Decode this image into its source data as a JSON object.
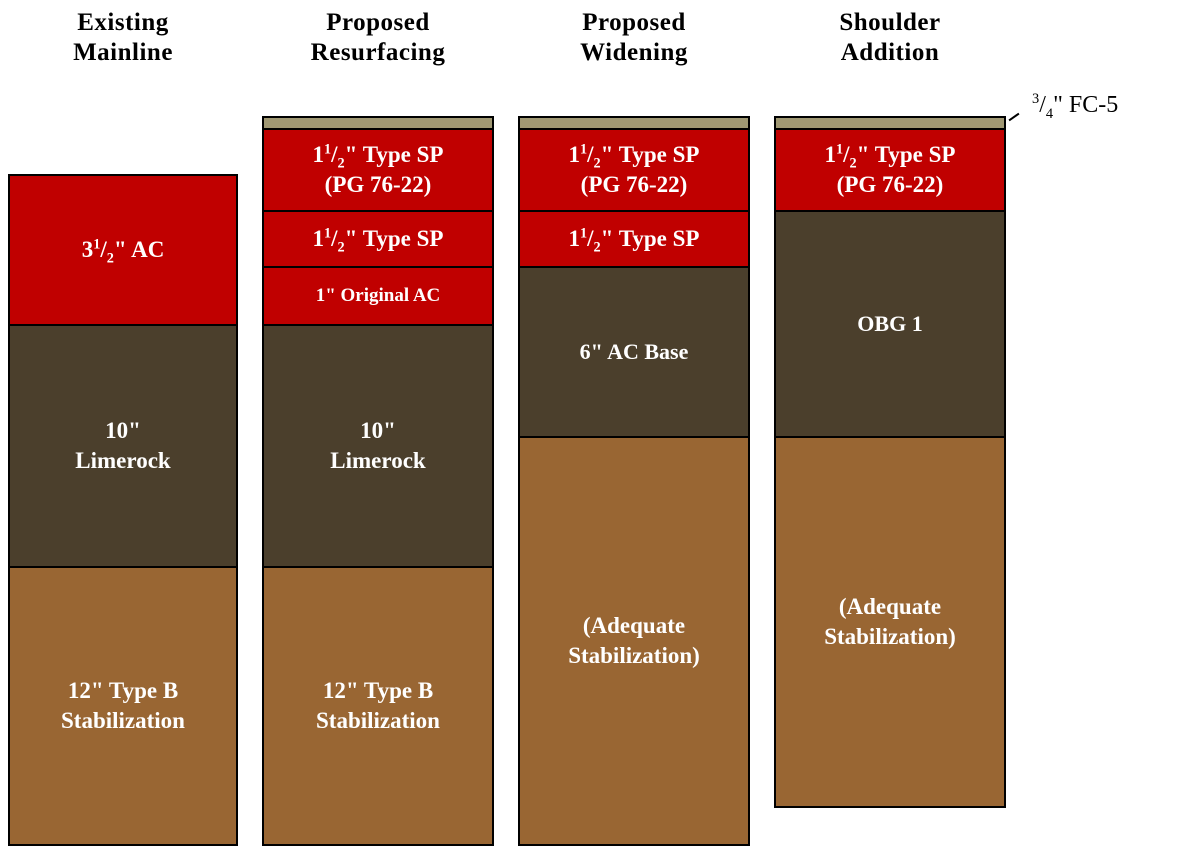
{
  "headers": [
    {
      "line1": "Existing",
      "line2": "Mainline"
    },
    {
      "line1": "Proposed",
      "line2": "Resurfacing"
    },
    {
      "line1": "Proposed",
      "line2": "Widening"
    },
    {
      "line1": "Shoulder",
      "line2": "Addition"
    }
  ],
  "fc_label": {
    "num": "3",
    "den": "4",
    "text": "\" FC-5"
  },
  "columns": {
    "existing": {
      "ac": {
        "pre": "3",
        "num": "1",
        "den": "2",
        "post": "\" AC"
      },
      "limerock": {
        "line1": "10\"",
        "line2": "Limerock"
      },
      "stab": {
        "line1": "12\" Type B",
        "line2": "Stabilization"
      }
    },
    "resurfacing": {
      "sp1": {
        "pre": "1",
        "num": "1",
        "den": "2",
        "post": "\" Type SP",
        "line2": "(PG 76-22)"
      },
      "sp2": {
        "pre": "1",
        "num": "1",
        "den": "2",
        "post": "\" Type SP"
      },
      "orig": {
        "text": "1\" Original AC"
      },
      "limerock": {
        "line1": "10\"",
        "line2": "Limerock"
      },
      "stab": {
        "line1": "12\" Type B",
        "line2": "Stabilization"
      }
    },
    "widening": {
      "sp1": {
        "pre": "1",
        "num": "1",
        "den": "2",
        "post": "\" Type SP",
        "line2": "(PG 76-22)"
      },
      "sp2": {
        "pre": "1",
        "num": "1",
        "den": "2",
        "post": "\" Type SP"
      },
      "base": {
        "text": "6\" AC Base"
      },
      "stab": {
        "line1": "(Adequate",
        "line2": "Stabilization)"
      }
    },
    "shoulder": {
      "sp1": {
        "pre": "1",
        "num": "1",
        "den": "2",
        "post": "\" Type SP",
        "line2": "(PG 76-22)"
      },
      "obg": {
        "text": "OBG 1"
      },
      "stab": {
        "line1": "(Adequate",
        "line2": "Stabilization)"
      }
    }
  },
  "colors": {
    "ac_red": "#c00000",
    "base_dark": "#4b3f2c",
    "stabilization_tan": "#996633",
    "friction_course": "#a09873"
  }
}
